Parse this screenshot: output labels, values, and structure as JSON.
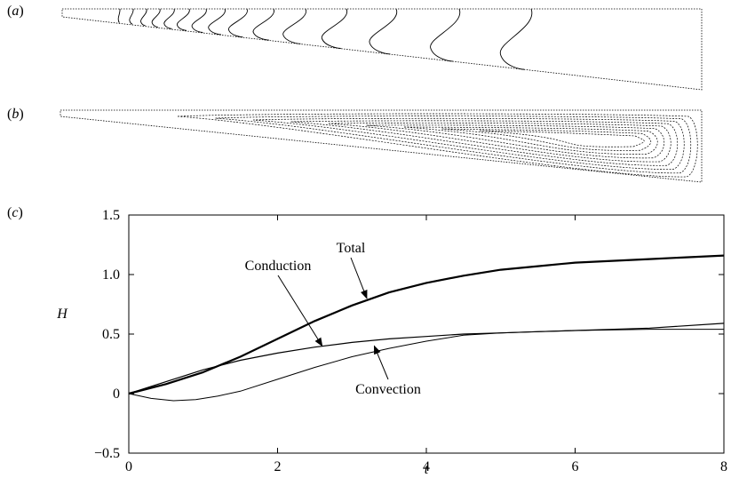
{
  "panels": {
    "a": {
      "label": "(a)",
      "letter": "a"
    },
    "b": {
      "label": "(b)",
      "letter": "b"
    },
    "c": {
      "label": "(c)",
      "letter": "c"
    }
  },
  "chart_data": {
    "type": "line",
    "title": "",
    "xlabel": "t",
    "ylabel": "H",
    "xlim": [
      0,
      8
    ],
    "ylim": [
      -0.5,
      1.5
    ],
    "xticks": [
      0,
      2,
      4,
      6,
      8
    ],
    "yticks": [
      -0.5,
      0,
      0.5,
      1.0,
      1.5
    ],
    "xtick_labels": [
      "0",
      "2",
      "4",
      "6",
      "8"
    ],
    "ytick_labels": [
      "−0.5",
      "0",
      "0.5",
      "1.0",
      "1.5"
    ],
    "grid": false,
    "series": [
      {
        "name": "Total",
        "x": [
          0,
          0.5,
          1,
          1.5,
          2,
          2.5,
          3,
          3.5,
          4,
          4.5,
          5,
          5.5,
          6,
          7,
          8
        ],
        "values": [
          0,
          0.08,
          0.18,
          0.31,
          0.46,
          0.61,
          0.74,
          0.85,
          0.93,
          0.99,
          1.04,
          1.07,
          1.1,
          1.13,
          1.16
        ]
      },
      {
        "name": "Conduction",
        "x": [
          0,
          0.5,
          1,
          1.5,
          2,
          2.5,
          3,
          3.5,
          4,
          4.5,
          5,
          5.5,
          6,
          7,
          8
        ],
        "values": [
          0,
          0.1,
          0.2,
          0.28,
          0.34,
          0.39,
          0.43,
          0.46,
          0.48,
          0.5,
          0.51,
          0.52,
          0.53,
          0.55,
          0.59
        ]
      },
      {
        "name": "Convection",
        "x": [
          0,
          0.3,
          0.6,
          0.9,
          1.2,
          1.5,
          2,
          2.5,
          3,
          3.5,
          4,
          4.5,
          5,
          5.5,
          6,
          7,
          8
        ],
        "values": [
          0,
          -0.04,
          -0.06,
          -0.05,
          -0.02,
          0.02,
          0.12,
          0.22,
          0.31,
          0.38,
          0.44,
          0.49,
          0.51,
          0.52,
          0.53,
          0.54,
          0.54
        ]
      }
    ],
    "annotations": [
      {
        "text": "Total",
        "points_to": {
          "x": 3.2,
          "y": 0.8
        }
      },
      {
        "text": "Conduction",
        "points_to": {
          "x": 2.6,
          "y": 0.4
        }
      },
      {
        "text": "Convection",
        "points_to": {
          "x": 3.3,
          "y": 0.4
        }
      }
    ]
  }
}
